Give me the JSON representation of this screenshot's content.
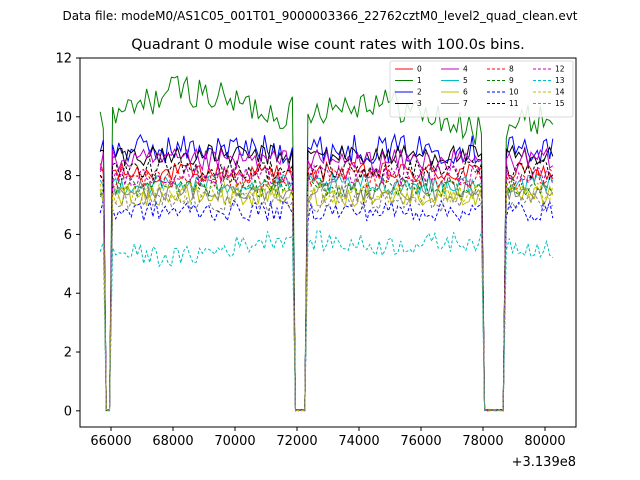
{
  "chart_data": {
    "type": "line",
    "suptitle": "Data file: modeM0/AS1C05_001T01_9000003366_22762cztM0_level2_quad_clean.evt",
    "title": "Quadrant 0 module wise count rates with 100.0s bins.",
    "xlabel": "",
    "ylabel": "",
    "x_offset_label": "+3.139e8",
    "xlim": [
      65000,
      81000
    ],
    "ylim": [
      -0.55,
      12
    ],
    "xticks": [
      66000,
      68000,
      70000,
      72000,
      74000,
      76000,
      78000,
      80000
    ],
    "yticks": [
      0,
      2,
      4,
      6,
      8,
      10,
      12
    ],
    "x_start": 65650,
    "bin_seconds": 100,
    "n_bins": 147,
    "gaps": [
      [
        65800,
        66050
      ],
      [
        71850,
        72300
      ],
      [
        77950,
        78700
      ]
    ],
    "legend": {
      "placement": "top-right",
      "columns": 4
    },
    "series": [
      {
        "name": "0",
        "color": "#ff0000",
        "style": "solid",
        "mean": 8.1,
        "amp": 0.35
      },
      {
        "name": "1",
        "color": "#008000",
        "style": "solid",
        "mean": 9.8,
        "amp": 0.55,
        "trend": [
          9.4,
          11.0,
          10.1,
          10.6,
          9.5,
          10.2
        ]
      },
      {
        "name": "2",
        "color": "#0000ff",
        "style": "solid",
        "mean": 8.9,
        "amp": 0.5
      },
      {
        "name": "3",
        "color": "#000000",
        "style": "solid",
        "mean": 8.7,
        "amp": 0.35
      },
      {
        "name": "4",
        "color": "#c000c0",
        "style": "solid",
        "mean": 8.5,
        "amp": 0.4
      },
      {
        "name": "5",
        "color": "#00bfbf",
        "style": "solid",
        "mean": 7.7,
        "amp": 0.35
      },
      {
        "name": "6",
        "color": "#bfbf00",
        "style": "solid",
        "mean": 7.3,
        "amp": 0.35
      },
      {
        "name": "7",
        "color": "#808080",
        "style": "solid",
        "mean": 7.5,
        "amp": 0.35
      },
      {
        "name": "8",
        "color": "#ff0000",
        "style": "dashed",
        "mean": 7.9,
        "amp": 0.35
      },
      {
        "name": "9",
        "color": "#008000",
        "style": "dashed",
        "mean": 7.6,
        "amp": 0.35
      },
      {
        "name": "10",
        "color": "#0000ff",
        "style": "dashed",
        "mean": 6.8,
        "amp": 0.35
      },
      {
        "name": "11",
        "color": "#000000",
        "style": "dashed",
        "mean": 8.2,
        "amp": 0.35
      },
      {
        "name": "12",
        "color": "#c000c0",
        "style": "dashed",
        "mean": 8.0,
        "amp": 0.35
      },
      {
        "name": "13",
        "color": "#00bfbf",
        "style": "dashed",
        "mean": 5.4,
        "amp": 0.35,
        "trend": [
          5.5,
          5.2,
          5.9,
          5.6,
          5.8,
          5.4
        ]
      },
      {
        "name": "14",
        "color": "#bfbf00",
        "style": "dashed",
        "mean": 7.4,
        "amp": 0.35
      },
      {
        "name": "15",
        "color": "#808080",
        "style": "dashed",
        "mean": 7.1,
        "amp": 0.35
      }
    ]
  }
}
